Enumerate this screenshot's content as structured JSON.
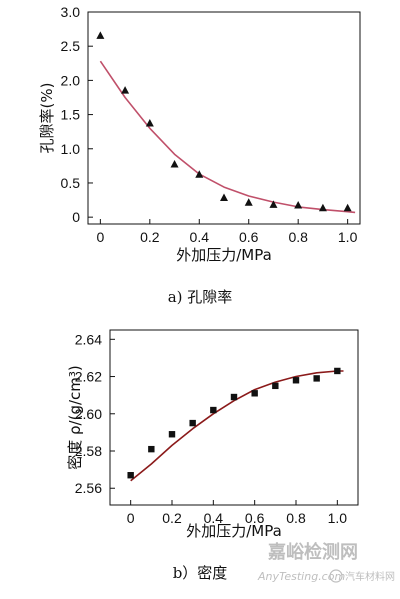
{
  "chart_data": [
    {
      "type": "scatter",
      "caption": "a) 孔隙率",
      "xlabel": "外加压力/MPa",
      "ylabel": "孔隙率(%)",
      "xlim": [
        -0.05,
        1.05
      ],
      "ylim": [
        -0.1,
        3.0
      ],
      "xticks": [
        "0",
        "0.2",
        "0.4",
        "0.6",
        "0.8",
        "1.0"
      ],
      "xtick_values": [
        0,
        0.2,
        0.4,
        0.6,
        0.8,
        1.0
      ],
      "yticks": [
        "0",
        "0.5",
        "1.0",
        "1.5",
        "2.0",
        "2.5",
        "3.0"
      ],
      "ytick_values": [
        0,
        0.5,
        1.0,
        1.5,
        2.0,
        2.5,
        3.0
      ],
      "marker": "triangle",
      "marker_color": "#111111",
      "line_color": "#c0506a",
      "points": [
        {
          "x": 0.0,
          "y": 2.65
        },
        {
          "x": 0.1,
          "y": 1.85
        },
        {
          "x": 0.2,
          "y": 1.37
        },
        {
          "x": 0.3,
          "y": 0.77
        },
        {
          "x": 0.4,
          "y": 0.62
        },
        {
          "x": 0.5,
          "y": 0.28
        },
        {
          "x": 0.6,
          "y": 0.21
        },
        {
          "x": 0.7,
          "y": 0.18
        },
        {
          "x": 0.8,
          "y": 0.17
        },
        {
          "x": 0.9,
          "y": 0.13
        },
        {
          "x": 1.0,
          "y": 0.13
        }
      ],
      "fit": [
        {
          "x": 0.0,
          "y": 2.28
        },
        {
          "x": 0.1,
          "y": 1.75
        },
        {
          "x": 0.2,
          "y": 1.3
        },
        {
          "x": 0.3,
          "y": 0.92
        },
        {
          "x": 0.4,
          "y": 0.63
        },
        {
          "x": 0.5,
          "y": 0.44
        },
        {
          "x": 0.6,
          "y": 0.31
        },
        {
          "x": 0.7,
          "y": 0.22
        },
        {
          "x": 0.8,
          "y": 0.15
        },
        {
          "x": 0.9,
          "y": 0.11
        },
        {
          "x": 1.0,
          "y": 0.08
        },
        {
          "x": 1.03,
          "y": 0.07
        }
      ]
    },
    {
      "type": "scatter",
      "caption": "b）密度",
      "xlabel": "外加压力/MPa",
      "ylabel": "密度 ρ/(g/cm³)",
      "xlim": [
        -0.1,
        1.1
      ],
      "ylim": [
        2.551,
        2.645
      ],
      "xticks": [
        "0",
        "0.2",
        "0.4",
        "0.6",
        "0.8",
        "1.0"
      ],
      "xtick_values": [
        0,
        0.2,
        0.4,
        0.6,
        0.8,
        1.0
      ],
      "yticks": [
        "2.56",
        "2.58",
        "2.60",
        "2.62",
        "2.64"
      ],
      "ytick_values": [
        2.56,
        2.58,
        2.6,
        2.62,
        2.64
      ],
      "marker": "square",
      "marker_color": "#111111",
      "line_color": "#8b1a1a",
      "points": [
        {
          "x": 0.0,
          "y": 2.567
        },
        {
          "x": 0.1,
          "y": 2.581
        },
        {
          "x": 0.2,
          "y": 2.589
        },
        {
          "x": 0.3,
          "y": 2.595
        },
        {
          "x": 0.4,
          "y": 2.602
        },
        {
          "x": 0.5,
          "y": 2.609
        },
        {
          "x": 0.6,
          "y": 2.611
        },
        {
          "x": 0.7,
          "y": 2.615
        },
        {
          "x": 0.8,
          "y": 2.618
        },
        {
          "x": 0.9,
          "y": 2.619
        },
        {
          "x": 1.0,
          "y": 2.623
        }
      ],
      "fit": [
        {
          "x": 0.0,
          "y": 2.564
        },
        {
          "x": 0.1,
          "y": 2.573
        },
        {
          "x": 0.2,
          "y": 2.583
        },
        {
          "x": 0.3,
          "y": 2.592
        },
        {
          "x": 0.4,
          "y": 2.6
        },
        {
          "x": 0.5,
          "y": 2.607
        },
        {
          "x": 0.6,
          "y": 2.613
        },
        {
          "x": 0.7,
          "y": 2.617
        },
        {
          "x": 0.8,
          "y": 2.62
        },
        {
          "x": 0.9,
          "y": 2.622
        },
        {
          "x": 1.0,
          "y": 2.623
        },
        {
          "x": 1.03,
          "y": 2.623
        }
      ]
    }
  ],
  "watermark": {
    "site_name": "嘉峪检测网",
    "site_url": "AnyTesting.com",
    "account": "汽车材料网"
  }
}
